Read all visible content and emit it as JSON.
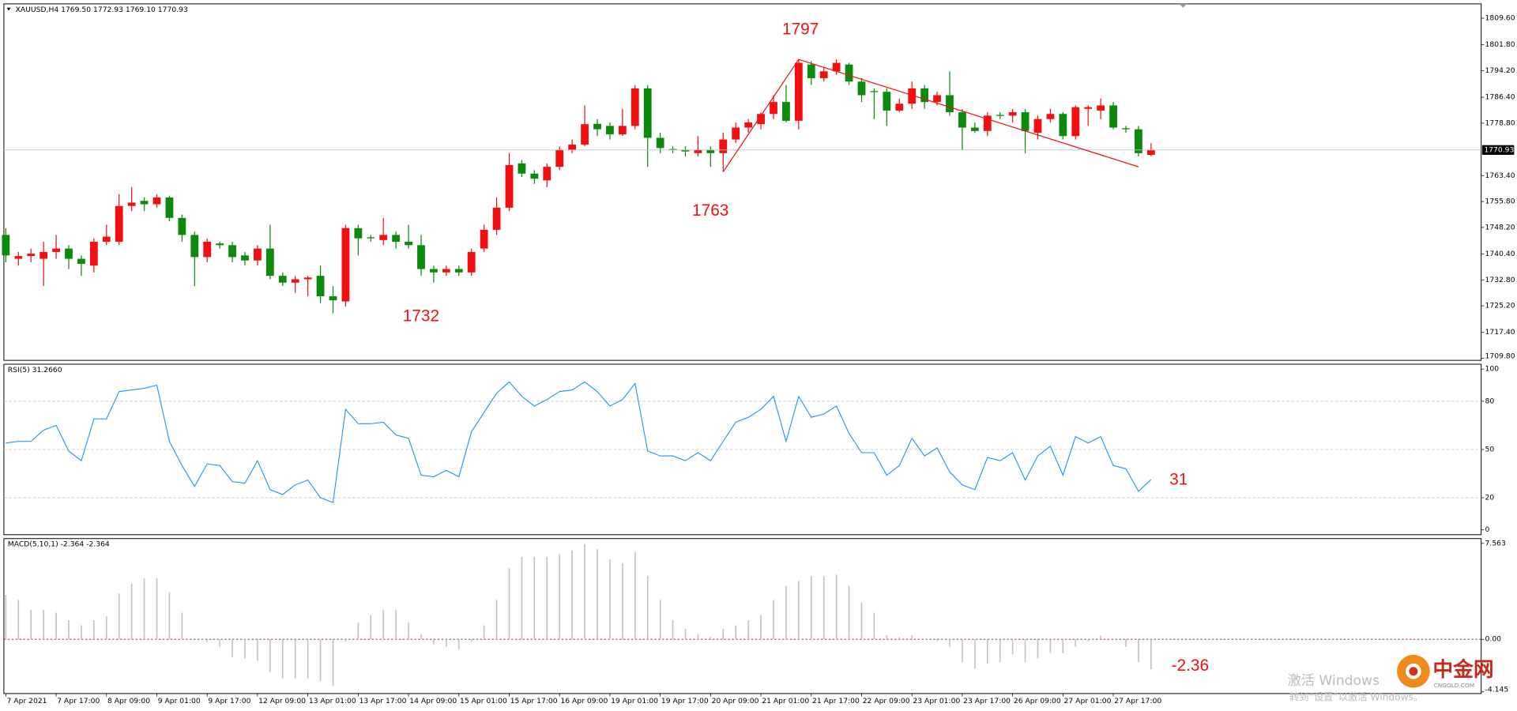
{
  "chart_data": [
    {
      "type": "candlestick",
      "title": "XAUUSD,H4  1769.50 1772.93 1769.10 1770.93",
      "categories": [
        "7 Apr 2021",
        null,
        null,
        null,
        "7 Apr 17:00",
        null,
        null,
        null,
        "8 Apr 09:00",
        null,
        null,
        null,
        "9 Apr 01:00",
        null,
        null,
        null,
        "9 Apr 17:00",
        null,
        null,
        null,
        "12 Apr 09:00",
        null,
        null,
        null,
        "13 Apr 01:00",
        null,
        null,
        null,
        "13 Apr 17:00",
        null,
        null,
        null,
        "14 Apr 09:00",
        null,
        null,
        null,
        "15 Apr 01:00",
        null,
        null,
        null,
        "15 Apr 17:00",
        null,
        null,
        null,
        "16 Apr 09:00",
        null,
        null,
        null,
        "19 Apr 01:00",
        null,
        null,
        null,
        "19 Apr 17:00",
        null,
        null,
        null,
        "20 Apr 09:00",
        null,
        null,
        null,
        "21 Apr 01:00",
        null,
        null,
        null,
        "21 Apr 17:00",
        null,
        null,
        null,
        "22 Apr 09:00",
        null,
        null,
        null,
        "23 Apr 01:00",
        null,
        null,
        null,
        "23 Apr 17:00",
        null,
        null,
        null,
        "26 Apr 09:00",
        null,
        null,
        null,
        "27 Apr 01:00",
        null,
        null,
        null,
        "27 Apr 17:00",
        null,
        null,
        null
      ],
      "open": [
        1746,
        1739,
        1739.8,
        1739,
        1741,
        1742,
        1739,
        1737,
        1744,
        1744,
        1754.5,
        1756,
        1755,
        1757,
        1751,
        1746,
        1739.5,
        1743.5,
        1743,
        1740,
        1738.5,
        1742,
        1734,
        1732,
        1733,
        1734,
        1728,
        1726.5,
        1748,
        1745.3,
        1744.5,
        1746,
        1744,
        1743,
        1736,
        1735,
        1736,
        1735,
        1742,
        1747.5,
        1754,
        1767,
        1764,
        1762,
        1766,
        1771,
        1772.5,
        1778.6,
        1778,
        1775.5,
        1778,
        1789,
        1774.5,
        1771.2,
        1771,
        1770,
        1771,
        1770,
        1774,
        1777.5,
        1778.5,
        1781.5,
        1785,
        1779.5,
        1796,
        1792,
        1794,
        1796,
        1791,
        1788.2,
        1788,
        1782.5,
        1784.5,
        1789,
        1785,
        1787,
        1782,
        1777.5,
        1776.5,
        1781.2,
        1781,
        1782,
        1776,
        1780,
        1781.5,
        1775,
        1783,
        1782.5,
        1784,
        1777.3,
        1777,
        1769.5
      ],
      "high": [
        1748,
        1741,
        1742,
        1744,
        1746,
        1743,
        1740,
        1745,
        1749,
        1758,
        1760,
        1757,
        1758,
        1757.5,
        1752,
        1747,
        1745,
        1744,
        1744,
        1741,
        1743,
        1749,
        1735,
        1734,
        1734,
        1737,
        1731,
        1749,
        1749,
        1746,
        1751,
        1747,
        1749,
        1746,
        1737,
        1737,
        1737,
        1742,
        1749,
        1757,
        1770,
        1768,
        1765,
        1767,
        1772,
        1774,
        1784,
        1780,
        1779,
        1783,
        1790,
        1790,
        1776,
        1772,
        1772,
        1775,
        1772,
        1776,
        1779,
        1780,
        1782,
        1787,
        1790,
        1797.5,
        1797,
        1795,
        1797.5,
        1796.5,
        1792,
        1789,
        1789,
        1786,
        1791,
        1790,
        1788,
        1794,
        1783,
        1779,
        1782,
        1782,
        1783,
        1783,
        1781,
        1783,
        1782,
        1784,
        1784,
        1786,
        1785,
        1778,
        1778,
        1772.93
      ],
      "low": [
        1738,
        1737,
        1738,
        1731,
        1739,
        1736,
        1734,
        1735,
        1743,
        1743,
        1753,
        1753,
        1754,
        1750,
        1744,
        1731,
        1738,
        1742,
        1738,
        1737,
        1737,
        1733,
        1731,
        1729,
        1728,
        1726,
        1723,
        1725,
        1740,
        1744,
        1743,
        1742,
        1742,
        1734,
        1732,
        1734,
        1734,
        1734,
        1741,
        1746,
        1753,
        1763,
        1761,
        1760,
        1765,
        1770,
        1772,
        1775,
        1774,
        1775,
        1777,
        1766,
        1770,
        1770,
        1769,
        1769,
        1766,
        1764.5,
        1773,
        1776,
        1777,
        1780,
        1779,
        1777,
        1790,
        1791,
        1793,
        1790,
        1785,
        1780,
        1778,
        1782,
        1783,
        1783,
        1784,
        1781,
        1771,
        1776,
        1775,
        1780,
        1779,
        1770,
        1774,
        1779,
        1774,
        1774,
        1778,
        1780,
        1777,
        1776,
        1769,
        1769.1
      ],
      "close": [
        1740,
        1739.8,
        1740.5,
        1741,
        1742,
        1739,
        1737.5,
        1744,
        1745.5,
        1754.5,
        1755.5,
        1755,
        1757,
        1751,
        1746,
        1739.5,
        1744,
        1743,
        1739.5,
        1738.5,
        1742,
        1734,
        1732,
        1733,
        1733.5,
        1728,
        1726.8,
        1748,
        1745,
        1745,
        1746,
        1744,
        1743,
        1736,
        1735,
        1736,
        1735,
        1741,
        1747.5,
        1754,
        1766.5,
        1764,
        1762.5,
        1766,
        1771,
        1772.5,
        1778.5,
        1777,
        1775.5,
        1778,
        1789,
        1774.5,
        1771.5,
        1771,
        1770.5,
        1771,
        1770,
        1774,
        1777.5,
        1779,
        1781.5,
        1785,
        1779.5,
        1796.5,
        1792,
        1794,
        1796.5,
        1791,
        1787,
        1788,
        1782.5,
        1784.5,
        1789,
        1785,
        1787,
        1782,
        1777.5,
        1776.5,
        1781,
        1781,
        1782,
        1776.5,
        1780,
        1781.5,
        1775,
        1783.5,
        1783.5,
        1784,
        1777.5,
        1777,
        1770,
        1770.93
      ],
      "up_color": "#f20f0f",
      "down_color": "#0b8a0b",
      "ylim": [
        1709.2,
        1813.8
      ],
      "yticks": [
        {
          "value": 1809.6,
          "label": "1809.60"
        },
        {
          "value": 1801.8,
          "label": "1801.80"
        },
        {
          "value": 1794.2,
          "label": "1794.20"
        },
        {
          "value": 1786.4,
          "label": "1786.40"
        },
        {
          "value": 1778.8,
          "label": "1778.80"
        },
        {
          "value": 1763.4,
          "label": "1763.40"
        },
        {
          "value": 1755.8,
          "label": "1755.80"
        },
        {
          "value": 1748.2,
          "label": "1748.20"
        },
        {
          "value": 1740.4,
          "label": "1740.40"
        },
        {
          "value": 1732.8,
          "label": "1732.80"
        },
        {
          "value": 1725.2,
          "label": "1725.20"
        },
        {
          "value": 1717.4,
          "label": "1717.40"
        },
        {
          "value": 1709.8,
          "label": "1709.80"
        }
      ],
      "last_price": {
        "value": 1770.93,
        "label": "1770.93"
      },
      "trend_line": {
        "x": [
          57,
          63,
          90
        ],
        "y": [
          1764.5,
          1797.5,
          1766
        ],
        "color": "#f20f0f"
      },
      "annotations": [
        "1797",
        "1763",
        "1732"
      ],
      "grid": false
    },
    {
      "type": "line",
      "title": "RSI(5) 31.2660",
      "color": "#1e90ff",
      "values": [
        54,
        55,
        55,
        62,
        65,
        49,
        43,
        69,
        69,
        86,
        87,
        88,
        90,
        55,
        40,
        27,
        41,
        40,
        30,
        29,
        43,
        25,
        22,
        28,
        31,
        20,
        17,
        75,
        66,
        66,
        67,
        59,
        57,
        34,
        33,
        37,
        33,
        61,
        73,
        85,
        92,
        83,
        77,
        81,
        86,
        87,
        92,
        86,
        77,
        81,
        91,
        49,
        46,
        46,
        43,
        48,
        43,
        55,
        67,
        70,
        75,
        83,
        55,
        83,
        70,
        72,
        77,
        60,
        48,
        48,
        34,
        40,
        57,
        46,
        51,
        36,
        28,
        25,
        45,
        43,
        48,
        31,
        46,
        52,
        34,
        58,
        54,
        58,
        40,
        38,
        24,
        31.266
      ],
      "ylim": [
        -3,
        103
      ],
      "yticks": [
        100,
        80,
        50,
        20,
        0
      ],
      "grid": true,
      "annotations": [
        "31"
      ]
    },
    {
      "type": "bar",
      "title": "MACD(5,10,1) -2.364 -2.364",
      "color": "#c0c0c0",
      "values": [
        3.5,
        3.1,
        2.3,
        2.3,
        2.1,
        1.5,
        1.1,
        1.5,
        1.8,
        3.6,
        4.4,
        4.8,
        4.8,
        3.7,
        2.1,
        0,
        -0.2,
        -0.6,
        -1.4,
        -1.5,
        -1.7,
        -2.6,
        -3.1,
        -3.1,
        -3.1,
        -3.3,
        -3.7,
        -0.2,
        1.3,
        1.9,
        2.3,
        2.3,
        1.3,
        0.4,
        -0.4,
        -0.6,
        -0.8,
        -0.2,
        1.1,
        3.1,
        5.6,
        6.5,
        6.5,
        6.5,
        6.7,
        7.0,
        7.5,
        7.1,
        6.3,
        6.0,
        6.9,
        5.0,
        3.1,
        1.5,
        0.8,
        0.4,
        0.2,
        0.8,
        1.1,
        1.5,
        1.9,
        3.1,
        4.2,
        4.6,
        5.0,
        5.0,
        5.1,
        4.2,
        2.9,
        2.1,
        0.3,
        0.15,
        0.3,
        0,
        -0.15,
        -0.6,
        -1.8,
        -2.3,
        -1.9,
        -1.8,
        -1.2,
        -1.8,
        -1.5,
        -1.1,
        -1.1,
        -0.6,
        -0.15,
        0.3,
        0,
        -0.6,
        -1.8,
        -2.364
      ],
      "ylim": [
        -4.28,
        7.94
      ],
      "yticks": [
        7.563,
        {
          "value": 0,
          "label": "0.00"
        },
        -4.145
      ],
      "zero_line_color": "#cc0000",
      "grid": false,
      "annotations": [
        "-2.36"
      ]
    }
  ],
  "watermark": {
    "line1": "激活 Windows",
    "line2": "转到“设置”以激活 Windows。"
  },
  "logo": {
    "name": "中金网",
    "site": "CNGOLD.COM"
  }
}
